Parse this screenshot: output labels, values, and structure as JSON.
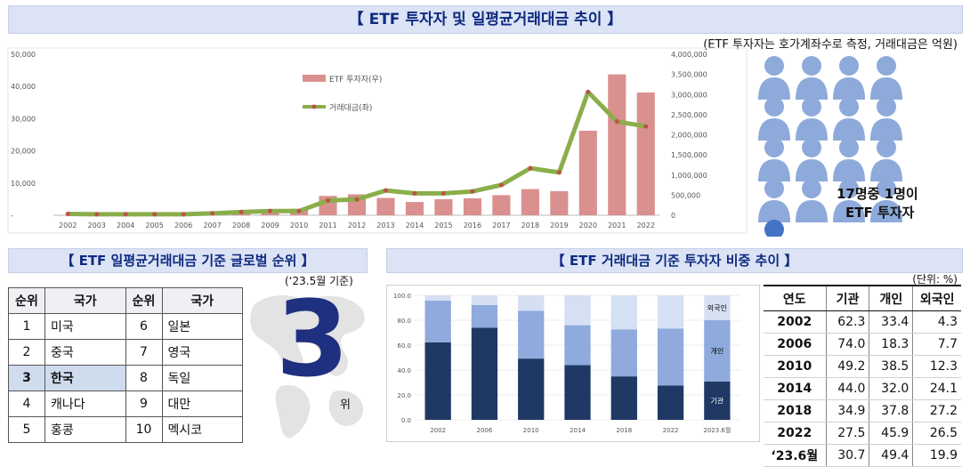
{
  "header": {
    "title": "【 ETF 투자자 및 일평균거래대금 추이 】",
    "note": "(ETF 투자자는 호가계좌수로 측정, 거래대금은 억원)"
  },
  "people": {
    "caption_line1": "17명중 1명이",
    "caption_line2": "ETF 투자자",
    "total": 17,
    "highlighted": 1
  },
  "ranking": {
    "title": "【 ETF 일평균거래대금 기준 글로벌 순위 】",
    "basis": "(‘23.5월 기준)",
    "headers": [
      "순위",
      "국가",
      "순위",
      "국가"
    ],
    "rows": [
      [
        "1",
        "미국",
        "6",
        "일본"
      ],
      [
        "2",
        "중국",
        "7",
        "영국"
      ],
      [
        "3",
        "한국",
        "8",
        "독일"
      ],
      [
        "4",
        "캐나다",
        "9",
        "대만"
      ],
      [
        "5",
        "홍콩",
        "10",
        "멕시코"
      ]
    ],
    "big_rank": "3",
    "big_rank_suffix": "위"
  },
  "share": {
    "title": "【 ETF 거래대금 기준 투자자 비중 추이 】",
    "unit": "(단위: %)",
    "headers": [
      "연도",
      "기관",
      "개인",
      "외국인"
    ],
    "rows": [
      [
        "2002",
        "62.3",
        "33.4",
        "4.3"
      ],
      [
        "2006",
        "74.0",
        "18.3",
        "7.7"
      ],
      [
        "2010",
        "49.2",
        "38.5",
        "12.3"
      ],
      [
        "2014",
        "44.0",
        "32.0",
        "24.1"
      ],
      [
        "2018",
        "34.9",
        "37.8",
        "27.2"
      ],
      [
        "2022",
        "27.5",
        "45.9",
        "26.5"
      ],
      [
        "‘23.6월",
        "30.7",
        "49.4",
        "19.9"
      ]
    ]
  },
  "colors": {
    "bar": "#d9908f",
    "line": "#8aae4a",
    "line_marker": "#c0504d",
    "inst": "#1f3864",
    "indiv": "#8faadc",
    "foreign": "#d6e0f3",
    "person": "#8eaadb",
    "person_hl": "#4472c4"
  },
  "chart_data": [
    {
      "type": "bar+line",
      "categories": [
        "2002",
        "2003",
        "2004",
        "2005",
        "2006",
        "2007",
        "2008",
        "2009",
        "2010",
        "2011",
        "2012",
        "2013",
        "2014",
        "2015",
        "2016",
        "2017",
        "2018",
        "2019",
        "2020",
        "2021",
        "2022"
      ],
      "series": [
        {
          "name": "ETF 투자자(우)",
          "type": "bar",
          "axis": "right",
          "values": [
            5000,
            8000,
            10000,
            12000,
            20000,
            35000,
            55000,
            90000,
            160000,
            480000,
            520000,
            430000,
            330000,
            400000,
            420000,
            500000,
            650000,
            600000,
            2100000,
            3500000,
            3050000
          ]
        },
        {
          "name": "거래대금(좌)",
          "type": "line",
          "axis": "left",
          "values": [
            400,
            300,
            300,
            300,
            300,
            600,
            1000,
            1300,
            1300,
            4600,
            4900,
            7700,
            6800,
            6800,
            7400,
            9400,
            14600,
            13300,
            38300,
            29100,
            27600
          ]
        }
      ],
      "left_axis": {
        "ylim": [
          0,
          50000
        ],
        "ticks": [
          "-",
          "10,000",
          "20,000",
          "30,000",
          "40,000",
          "50,000"
        ]
      },
      "right_axis": {
        "ylim": [
          0,
          4000000
        ],
        "ticks": [
          "0",
          "500,000",
          "1,000,000",
          "1,500,000",
          "2,000,000",
          "2,500,000",
          "3,000,000",
          "3,500,000",
          "4,000,000"
        ]
      },
      "legend": "inside-top-left"
    },
    {
      "type": "bar",
      "stacked": true,
      "categories": [
        "2002",
        "2006",
        "2010",
        "2014",
        "2018",
        "2022",
        "2023.6월"
      ],
      "series": [
        {
          "name": "기관",
          "values": [
            62.3,
            74.0,
            49.2,
            44.0,
            34.9,
            27.5,
            30.7
          ]
        },
        {
          "name": "개인",
          "values": [
            33.4,
            18.3,
            38.5,
            32.0,
            37.8,
            45.9,
            49.4
          ]
        },
        {
          "name": "외국인",
          "values": [
            4.3,
            7.7,
            12.3,
            24.1,
            27.2,
            26.5,
            19.9
          ]
        }
      ],
      "ylim": [
        0,
        100
      ],
      "ticks": [
        "0.0",
        "20.0",
        "40.0",
        "60.0",
        "80.0",
        "100.0"
      ]
    }
  ]
}
